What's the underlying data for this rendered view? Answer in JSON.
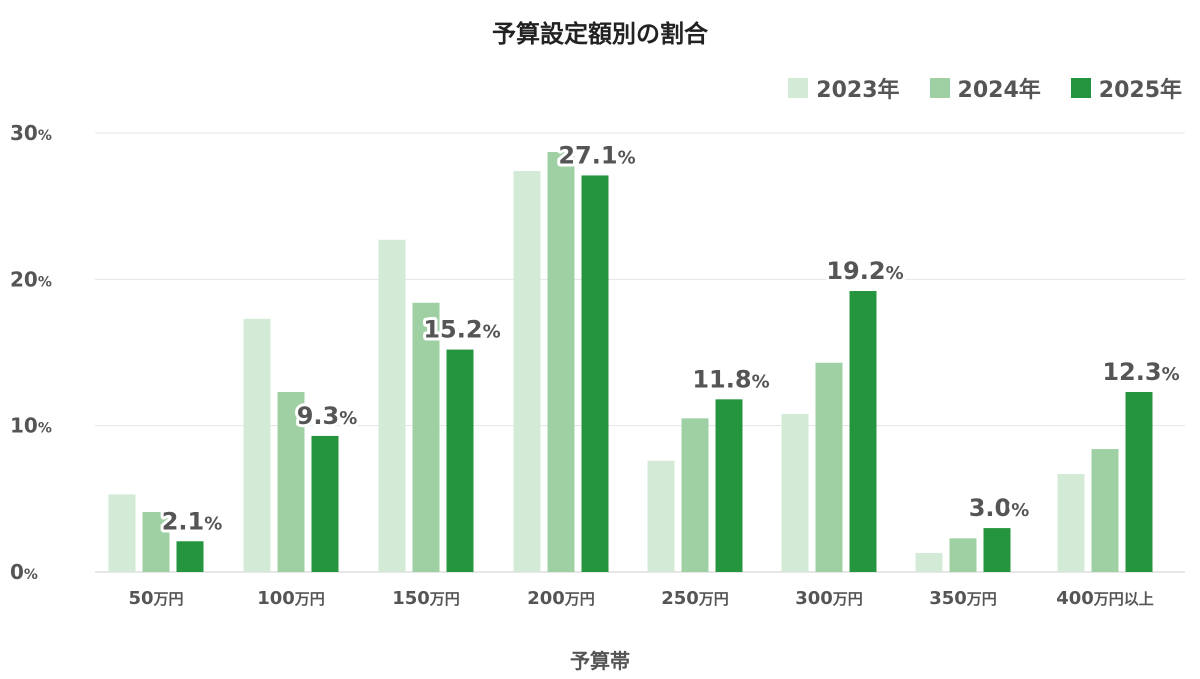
{
  "chart_data": {
    "type": "bar",
    "title": "予算設定額別の割合",
    "xlabel": "予算帯",
    "ylabel": "",
    "ylim": [
      0,
      30
    ],
    "yticks": [
      0,
      10,
      20,
      30
    ],
    "ytick_unit": "%",
    "categories": [
      {
        "num": "50",
        "unit": "万円"
      },
      {
        "num": "100",
        "unit": "万円"
      },
      {
        "num": "150",
        "unit": "万円"
      },
      {
        "num": "200",
        "unit": "万円"
      },
      {
        "num": "250",
        "unit": "万円"
      },
      {
        "num": "300",
        "unit": "万円"
      },
      {
        "num": "350",
        "unit": "万円"
      },
      {
        "num": "400",
        "unit": "万円以上"
      }
    ],
    "series": [
      {
        "name": "2023年",
        "color": "#d3ead6",
        "values": [
          5.3,
          17.3,
          22.7,
          27.4,
          7.6,
          10.8,
          1.3,
          6.7
        ]
      },
      {
        "name": "2024年",
        "color": "#9fd0a3",
        "values": [
          4.1,
          12.3,
          18.4,
          28.7,
          10.5,
          14.3,
          2.3,
          8.4
        ]
      },
      {
        "name": "2025年",
        "color": "#24953e",
        "values": [
          2.1,
          9.3,
          15.2,
          27.1,
          11.8,
          19.2,
          3.0,
          12.3
        ]
      }
    ],
    "data_labels": {
      "series_index": 2,
      "unit": "%"
    },
    "grid": true,
    "legend": "top-right"
  }
}
